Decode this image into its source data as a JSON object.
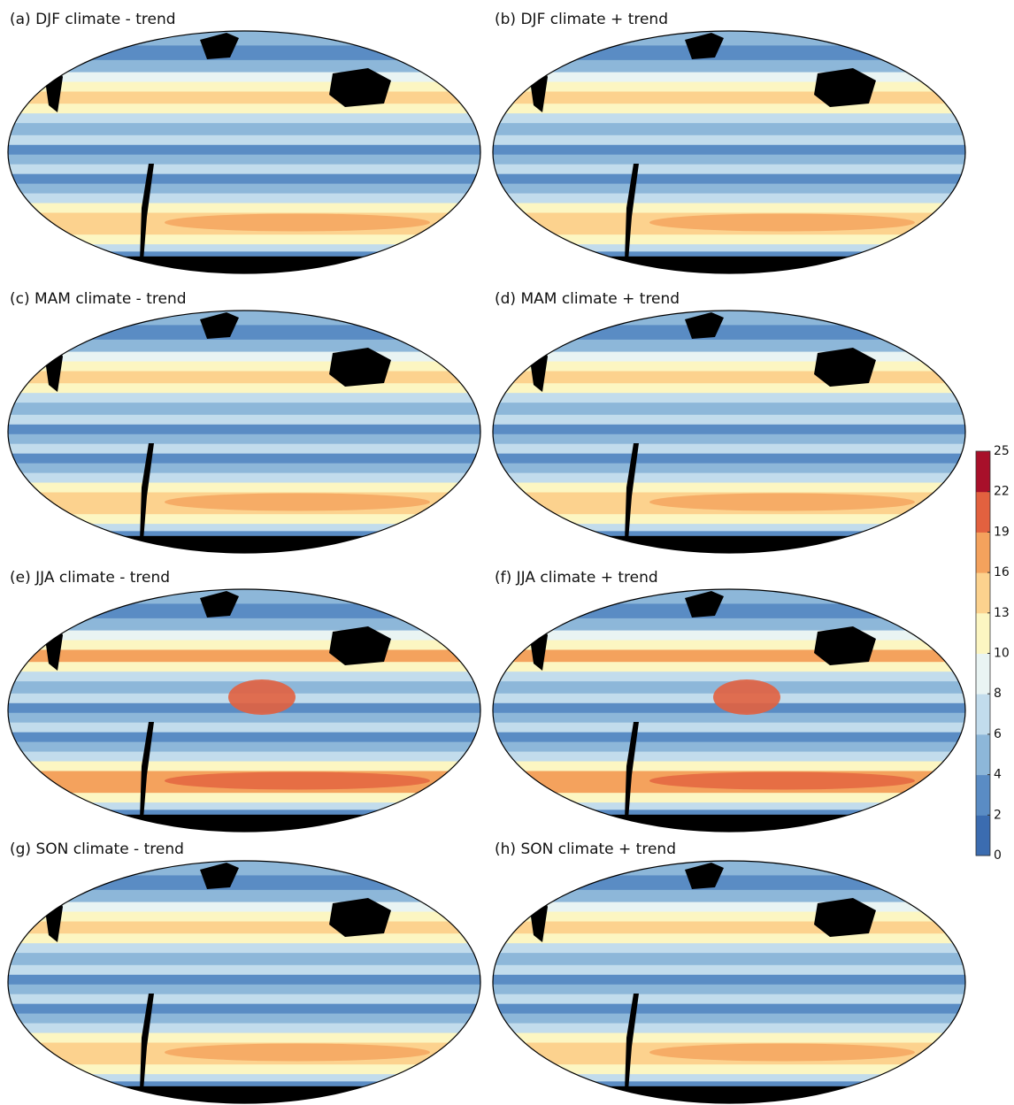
{
  "panels": [
    {
      "title": "(a) DJF climate - trend"
    },
    {
      "title": "(b) DJF climate + trend"
    },
    {
      "title": "(c) MAM climate - trend"
    },
    {
      "title": "(d) MAM climate + trend"
    },
    {
      "title": "(e) JJA climate - trend"
    },
    {
      "title": "(f) JJA climate + trend"
    },
    {
      "title": "(g) SON climate - trend"
    },
    {
      "title": "(h) SON climate + trend"
    }
  ],
  "colorbar": {
    "ticks": [
      0,
      2,
      4,
      6,
      8,
      10,
      13,
      16,
      19,
      22,
      25
    ],
    "colors": [
      "#3b6cb0",
      "#5a8cc4",
      "#8db7d9",
      "#c2dcec",
      "#e9f4f3",
      "#fcf6c2",
      "#fcd28e",
      "#f4a25d",
      "#e2613f",
      "#a8102a"
    ]
  }
}
